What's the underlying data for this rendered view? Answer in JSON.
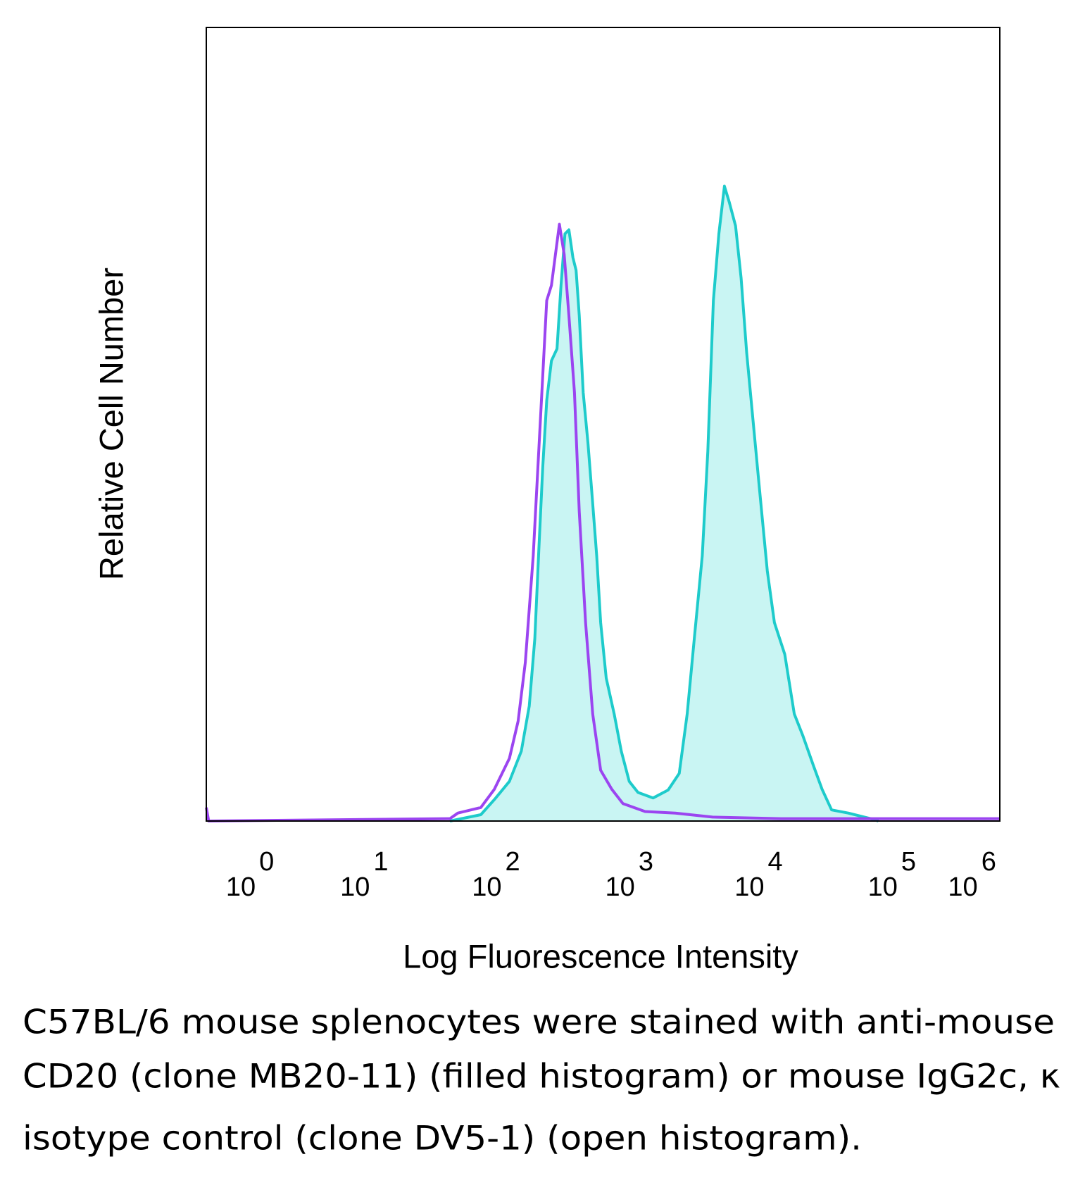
{
  "chart_data": {
    "type": "histogram-overlay",
    "xlabel": "Log Fluorescence Intensity",
    "ylabel": "Relative Cell Number",
    "caption": [
      "C57BL/6 mouse splenocytes were stained with anti-mouse",
      "CD20 (clone MB20-11) (filled histogram) or mouse IgG2c, κ",
      "isotype control (clone DV5-1) (open histogram)."
    ],
    "xlim": [
      0,
      1000
    ],
    "ylim": [
      0,
      100
    ],
    "xticks": [
      {
        "value": 64,
        "label": "10",
        "exponent": "0"
      },
      {
        "value": 208,
        "label": "10",
        "exponent": "1"
      },
      {
        "value": 374,
        "label": "10",
        "exponent": "2"
      },
      {
        "value": 542,
        "label": "10",
        "exponent": "3"
      },
      {
        "value": 705,
        "label": "10",
        "exponent": "4"
      },
      {
        "value": 873,
        "label": "10",
        "exponent": "5"
      },
      {
        "value": 974,
        "label": "10",
        "exponent": "6"
      }
    ],
    "series": [
      {
        "color": "#1ecbcb",
        "fill": "#c9f5f3",
        "x": [
          307,
          346,
          363,
          382,
          397,
          407,
          414,
          419,
          424,
          429,
          435,
          442,
          447,
          452,
          457,
          462,
          466,
          470,
          475,
          481,
          487,
          492,
          497,
          504,
          514,
          523,
          533,
          544,
          563,
          582,
          596,
          606,
          615,
          625,
          632,
          639,
          646,
          653,
          659,
          667,
          674,
          681,
          689,
          697,
          707,
          716,
          729,
          741,
          752,
          765,
          776,
          788,
          809,
          837,
          847
        ],
        "values": [
          0,
          0.8,
          2.7,
          5,
          8.8,
          14.5,
          23,
          34,
          44.5,
          53,
          58,
          59.5,
          67.5,
          74,
          74.5,
          71,
          69.4,
          63.7,
          54,
          47.6,
          40,
          33.4,
          25,
          18,
          13.5,
          8.8,
          5,
          3.6,
          2.9,
          3.9,
          6,
          13.5,
          23,
          33.4,
          46.6,
          65.6,
          74,
          80,
          78,
          75,
          68.4,
          59,
          50.5,
          42,
          31.5,
          25,
          21,
          13.5,
          10.7,
          7,
          4,
          1.4,
          1,
          0.3,
          0
        ]
      },
      {
        "color": "#9b45f0",
        "x": [
          0,
          3,
          307,
          317,
          346,
          363,
          382,
          393,
          402,
          412,
          421,
          429,
          435,
          440,
          445,
          451,
          457,
          464,
          470,
          478,
          487,
          497,
          511,
          525,
          553,
          591,
          638,
          724,
          1000
        ],
        "values": [
          1.7,
          0,
          0.3,
          1,
          1.7,
          4,
          7.9,
          12.6,
          20,
          33.4,
          50.5,
          65.6,
          67.5,
          71.4,
          75.2,
          71.4,
          63.7,
          54,
          39,
          25,
          13.5,
          6.4,
          4,
          2.2,
          1.2,
          1,
          0.5,
          0.3,
          0.3
        ]
      }
    ]
  }
}
